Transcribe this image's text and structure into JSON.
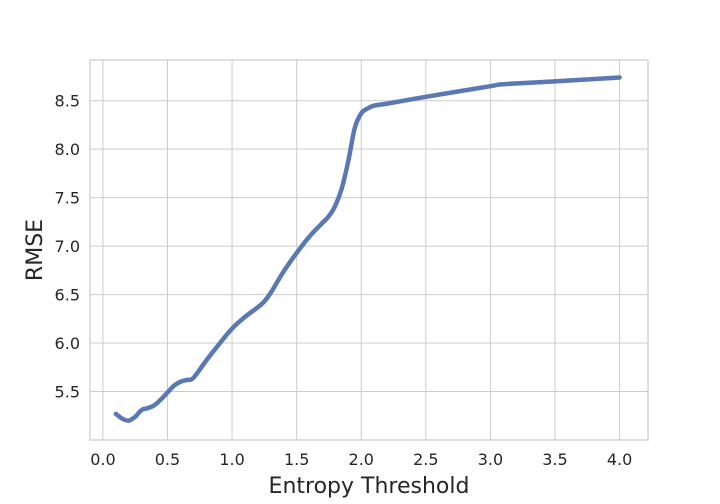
{
  "chart_data": {
    "type": "line",
    "title": "",
    "xlabel": "Entropy Threshold",
    "ylabel": "RMSE",
    "xlim": [
      -0.1,
      4.22
    ],
    "ylim": [
      5.0,
      8.92
    ],
    "xticks": [
      0.0,
      0.5,
      1.0,
      1.5,
      2.0,
      2.5,
      3.0,
      3.5,
      4.0
    ],
    "xtick_labels": [
      "0.0",
      "0.5",
      "1.0",
      "1.5",
      "2.0",
      "2.5",
      "3.0",
      "3.5",
      "4.0"
    ],
    "yticks": [
      5.5,
      6.0,
      6.5,
      7.0,
      7.5,
      8.0,
      8.5
    ],
    "ytick_labels": [
      "5.5",
      "6.0",
      "6.5",
      "7.0",
      "7.5",
      "8.0",
      "8.5"
    ],
    "grid": true,
    "legend": "none",
    "series": [
      {
        "color": "#5a78b3",
        "x": [
          0.1,
          0.15,
          0.2,
          0.25,
          0.3,
          0.35,
          0.4,
          0.45,
          0.5,
          0.55,
          0.6,
          0.65,
          0.7,
          0.8,
          0.9,
          1.0,
          1.1,
          1.2,
          1.25,
          1.3,
          1.4,
          1.5,
          1.6,
          1.7,
          1.75,
          1.8,
          1.85,
          1.9,
          1.95,
          2.0,
          2.05,
          2.1,
          2.2,
          2.5,
          3.0,
          3.1,
          3.5,
          4.0
        ],
        "y": [
          5.27,
          5.22,
          5.2,
          5.24,
          5.31,
          5.33,
          5.36,
          5.42,
          5.49,
          5.56,
          5.6,
          5.62,
          5.64,
          5.82,
          5.99,
          6.15,
          6.27,
          6.37,
          6.43,
          6.52,
          6.74,
          6.93,
          7.1,
          7.24,
          7.31,
          7.42,
          7.6,
          7.88,
          8.22,
          8.37,
          8.42,
          8.45,
          8.47,
          8.54,
          8.65,
          8.67,
          8.7,
          8.74
        ]
      }
    ]
  }
}
